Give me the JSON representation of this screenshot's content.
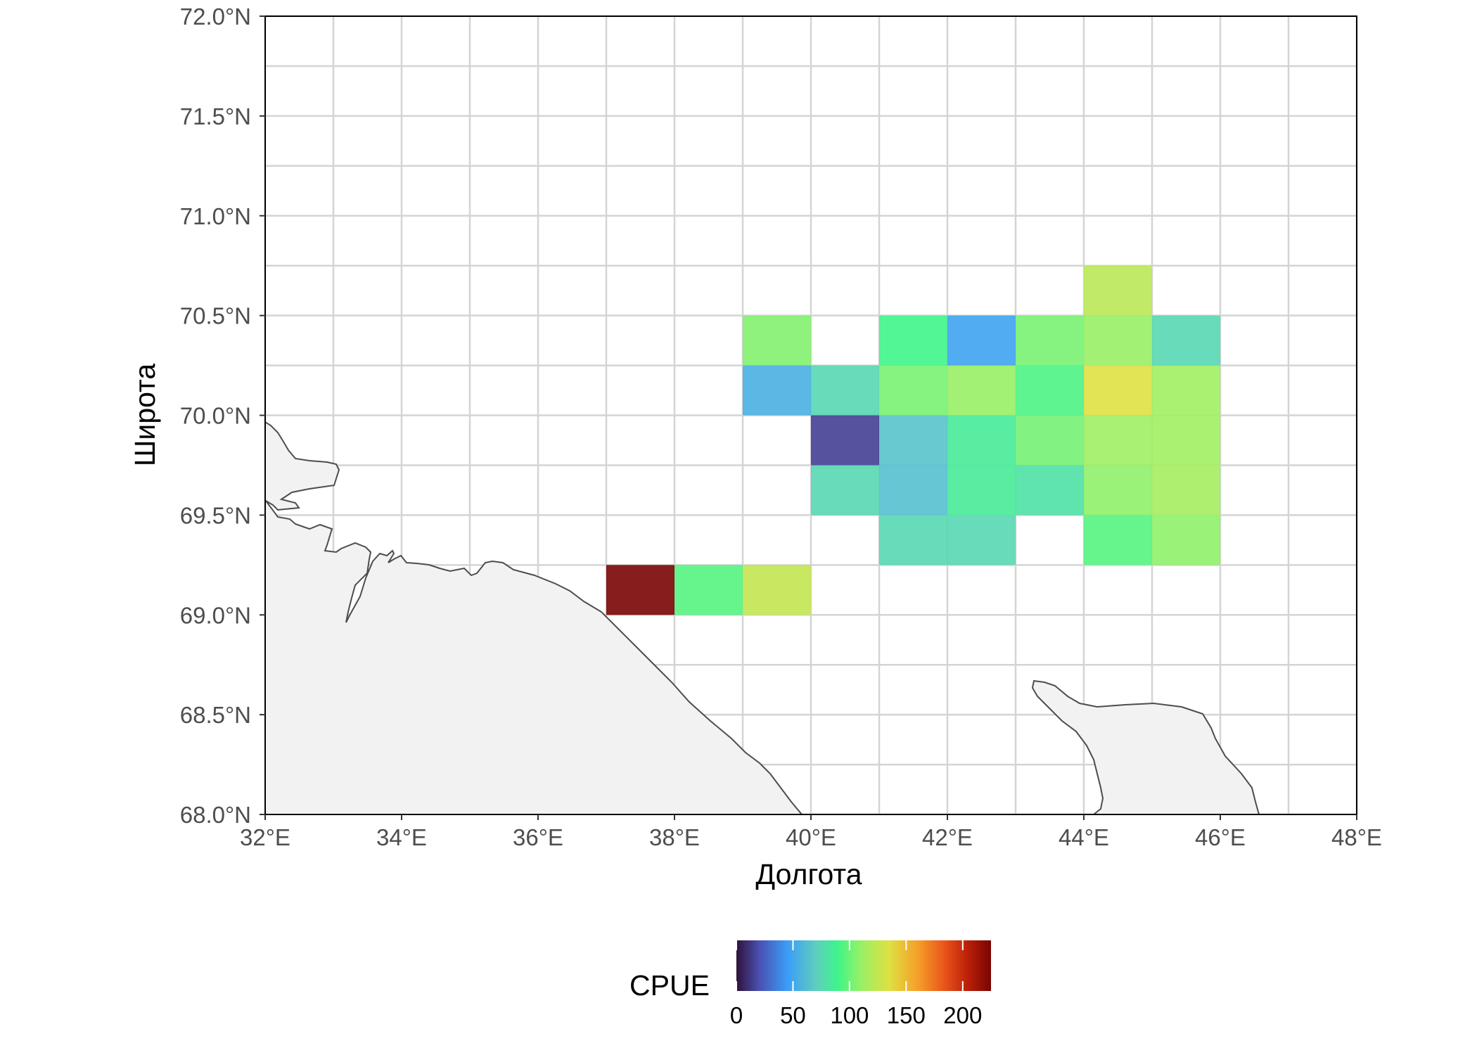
{
  "chart_data": {
    "type": "heatmap",
    "xlabel": "Долгота",
    "ylabel": "Широта",
    "xlim": [
      32,
      48
    ],
    "ylim": [
      68,
      72
    ],
    "x_ticks": [
      "32°E",
      "34°E",
      "36°E",
      "38°E",
      "40°E",
      "42°E",
      "44°E",
      "46°E",
      "48°E"
    ],
    "y_ticks": [
      "68.0°N",
      "68.5°N",
      "69.0°N",
      "69.5°N",
      "70.0°N",
      "70.5°N",
      "71.0°N",
      "71.5°N",
      "72.0°N"
    ],
    "cell_size": {
      "lon": 1,
      "lat": 0.25
    },
    "grid": true,
    "land_fill": "#f2f2f2",
    "land_stroke": "#4d4d4d",
    "cells": [
      {
        "lon": 37,
        "lat": 69.0,
        "cpue": 225
      },
      {
        "lon": 38,
        "lat": 69.0,
        "cpue": 95
      },
      {
        "lon": 39,
        "lat": 69.0,
        "cpue": 125
      },
      {
        "lon": 41,
        "lat": 69.25,
        "cpue": 75
      },
      {
        "lon": 42,
        "lat": 69.25,
        "cpue": 75
      },
      {
        "lon": 44,
        "lat": 69.25,
        "cpue": 95
      },
      {
        "lon": 45,
        "lat": 69.25,
        "cpue": 108
      },
      {
        "lon": 40,
        "lat": 69.5,
        "cpue": 75
      },
      {
        "lon": 41,
        "lat": 69.5,
        "cpue": 63
      },
      {
        "lon": 42,
        "lat": 69.5,
        "cpue": 85
      },
      {
        "lon": 43,
        "lat": 69.5,
        "cpue": 80
      },
      {
        "lon": 44,
        "lat": 69.5,
        "cpue": 108
      },
      {
        "lon": 45,
        "lat": 69.5,
        "cpue": 115
      },
      {
        "lon": 40,
        "lat": 69.75,
        "cpue": 15
      },
      {
        "lon": 41,
        "lat": 69.75,
        "cpue": 65
      },
      {
        "lon": 42,
        "lat": 69.75,
        "cpue": 85
      },
      {
        "lon": 43,
        "lat": 69.75,
        "cpue": 102
      },
      {
        "lon": 44,
        "lat": 69.75,
        "cpue": 112
      },
      {
        "lon": 45,
        "lat": 69.75,
        "cpue": 113
      },
      {
        "lon": 39,
        "lat": 70.0,
        "cpue": 55
      },
      {
        "lon": 40,
        "lat": 70.0,
        "cpue": 75
      },
      {
        "lon": 41,
        "lat": 70.0,
        "cpue": 103
      },
      {
        "lon": 42,
        "lat": 70.0,
        "cpue": 110
      },
      {
        "lon": 43,
        "lat": 70.0,
        "cpue": 93
      },
      {
        "lon": 44,
        "lat": 70.0,
        "cpue": 135
      },
      {
        "lon": 45,
        "lat": 70.0,
        "cpue": 113
      },
      {
        "lon": 39,
        "lat": 70.25,
        "cpue": 105
      },
      {
        "lon": 41,
        "lat": 70.25,
        "cpue": 90
      },
      {
        "lon": 42,
        "lat": 70.25,
        "cpue": 48
      },
      {
        "lon": 43,
        "lat": 70.25,
        "cpue": 103
      },
      {
        "lon": 44,
        "lat": 70.25,
        "cpue": 110
      },
      {
        "lon": 45,
        "lat": 70.25,
        "cpue": 75
      },
      {
        "lon": 44,
        "lat": 70.5,
        "cpue": 122
      }
    ],
    "colorbar": {
      "title": "CPUE",
      "min": 0,
      "max": 225,
      "ticks": [
        0,
        50,
        100,
        150,
        200
      ],
      "stops": [
        {
          "v": 0,
          "color": "#30123b"
        },
        {
          "v": 20,
          "color": "#4a4fb0"
        },
        {
          "v": 45,
          "color": "#3a9df7"
        },
        {
          "v": 70,
          "color": "#5fcdc0"
        },
        {
          "v": 90,
          "color": "#3ff58a"
        },
        {
          "v": 110,
          "color": "#98f066"
        },
        {
          "v": 135,
          "color": "#dfe042"
        },
        {
          "v": 160,
          "color": "#f5a029"
        },
        {
          "v": 185,
          "color": "#e8511a"
        },
        {
          "v": 205,
          "color": "#b81f08"
        },
        {
          "v": 225,
          "color": "#7a0403"
        }
      ]
    }
  }
}
